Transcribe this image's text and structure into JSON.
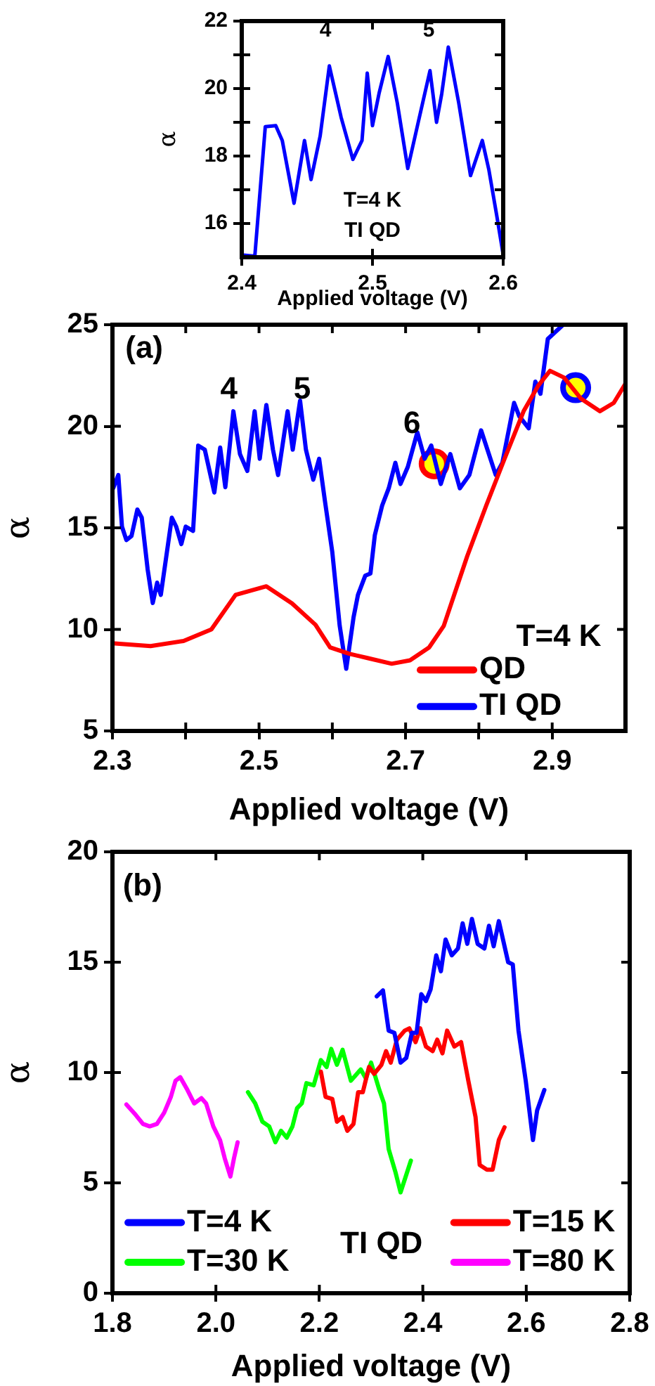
{
  "chart_data": [
    {
      "type": "line",
      "xlabel": "Applied voltage (V)",
      "ylabel": "α",
      "xlim": [
        2.4,
        2.6
      ],
      "xticks": [
        2.4,
        2.5,
        2.6
      ],
      "ylim": [
        15,
        22
      ],
      "yticks": [
        16,
        {
          "value": 17,
          "label": null
        },
        18,
        {
          "value": 19,
          "label": null
        },
        20,
        {
          "value": 21,
          "label": null
        },
        22
      ],
      "series": [
        {
          "color": "#0000ff",
          "x": [
            2.4,
            2.41,
            2.418,
            2.426,
            2.431,
            2.44,
            2.448,
            2.453,
            2.46,
            2.467,
            2.476,
            2.485,
            2.492,
            2.496,
            2.5,
            2.505,
            2.512,
            2.519,
            2.527,
            2.535,
            2.544,
            2.549,
            2.553,
            2.558,
            2.566,
            2.575,
            2.584,
            2.589,
            2.595,
            2.6
          ],
          "values": [
            15.07,
            15.03,
            18.87,
            18.9,
            18.46,
            16.6,
            18.46,
            17.3,
            18.6,
            20.67,
            19.15,
            17.9,
            18.46,
            20.46,
            18.9,
            19.85,
            20.95,
            19.57,
            17.63,
            19.0,
            20.53,
            19.0,
            19.85,
            21.23,
            19.57,
            17.42,
            18.46,
            17.6,
            16.25,
            15.07
          ]
        }
      ],
      "annotations": [
        "T=4 K",
        "TI QD",
        "4",
        "5"
      ]
    },
    {
      "type": "line",
      "xlabel": "Applied voltage (V)",
      "ylabel": "α",
      "xlim": [
        2.3,
        3.0
      ],
      "xticks": [
        2.3,
        {
          "value": 2.4,
          "label": null
        },
        2.5,
        {
          "value": 2.6,
          "label": null
        },
        2.7,
        {
          "value": 2.8,
          "label": null
        },
        2.9
      ],
      "ylim": [
        5,
        25
      ],
      "yticks": [
        5,
        10,
        15,
        20,
        25
      ],
      "legend": "bottom right",
      "series": [
        {
          "name": "QD",
          "color": "#ff0000",
          "x": [
            2.3,
            2.352,
            2.397,
            2.435,
            2.468,
            2.51,
            2.545,
            2.577,
            2.597,
            2.623,
            2.648,
            2.681,
            2.706,
            2.732,
            2.752,
            2.784,
            2.81,
            2.835,
            2.861,
            2.881,
            2.897,
            2.916,
            2.939,
            2.965,
            2.984,
            3.0
          ],
          "values": [
            9.32,
            9.18,
            9.43,
            10.0,
            11.7,
            12.12,
            11.28,
            10.23,
            9.11,
            8.8,
            8.59,
            8.31,
            8.48,
            9.11,
            10.17,
            13.6,
            16.1,
            18.4,
            20.74,
            22.0,
            22.73,
            22.4,
            21.37,
            20.74,
            21.15,
            22.1
          ]
        },
        {
          "name": "TI QD",
          "color": "#0000ff",
          "x": [
            2.301,
            2.308,
            2.313,
            2.319,
            2.326,
            2.334,
            2.34,
            2.348,
            2.355,
            2.361,
            2.366,
            2.381,
            2.387,
            2.394,
            2.4,
            2.41,
            2.417,
            2.426,
            2.439,
            2.447,
            2.454,
            2.465,
            2.474,
            2.484,
            2.494,
            2.501,
            2.51,
            2.519,
            2.526,
            2.539,
            2.546,
            2.556,
            2.564,
            2.574,
            2.582,
            2.59,
            2.6,
            2.61,
            2.619,
            2.629,
            2.635,
            2.645,
            2.652,
            2.658,
            2.668,
            2.677,
            2.686,
            2.693,
            2.703,
            2.716,
            2.726,
            2.735,
            2.748,
            2.761,
            2.774,
            2.787,
            2.803,
            2.823,
            2.832,
            2.848,
            2.855,
            2.868,
            2.877,
            2.884,
            2.894,
            2.915
          ],
          "values": [
            16.95,
            17.6,
            15.06,
            14.4,
            14.6,
            15.9,
            15.5,
            12.96,
            11.3,
            12.3,
            11.7,
            15.5,
            15.06,
            14.2,
            15.06,
            14.85,
            19.05,
            18.85,
            16.74,
            18.95,
            17.0,
            20.74,
            18.63,
            17.8,
            20.74,
            18.4,
            21.05,
            18.85,
            17.6,
            20.74,
            18.85,
            21.26,
            18.85,
            17.37,
            18.4,
            16.3,
            13.8,
            10.2,
            8.06,
            10.6,
            11.7,
            12.65,
            12.75,
            14.64,
            16.1,
            16.95,
            18.2,
            17.16,
            18.0,
            19.7,
            18.4,
            19.05,
            17.16,
            18.63,
            16.95,
            17.6,
            19.8,
            17.6,
            18.2,
            21.15,
            20.5,
            19.9,
            22.2,
            21.6,
            24.3,
            25
          ]
        },
        {
          "type": "scatter",
          "color": "#ffff00",
          "x": [
            2.739
          ],
          "values": [
            18.15
          ]
        },
        {
          "type": "scatter",
          "color": "#ffff00",
          "x": [
            2.932
          ],
          "values": [
            21.9
          ]
        }
      ],
      "annotations": [
        "(a)",
        "T=4 K",
        "4",
        "5",
        "6"
      ]
    },
    {
      "type": "line",
      "xlabel": "Applied voltage (V)",
      "ylabel": "α",
      "xlim": [
        1.8,
        2.8
      ],
      "xticks": [
        1.8,
        {
          "value": 2.0,
          "label": "2.0"
        },
        2.2,
        2.4,
        2.6,
        2.8
      ],
      "ylim": [
        0,
        20
      ],
      "yticks": [
        0,
        5,
        10,
        15,
        20
      ],
      "legend": "bottom",
      "series": [
        {
          "name": "T=4 K",
          "color": "#0000ff",
          "x": [
            2.311,
            2.323,
            2.334,
            2.345,
            2.357,
            2.368,
            2.379,
            2.388,
            2.397,
            2.406,
            2.415,
            2.426,
            2.435,
            2.444,
            2.456,
            2.468,
            2.477,
            2.486,
            2.495,
            2.506,
            2.519,
            2.528,
            2.537,
            2.547,
            2.565,
            2.574,
            2.585,
            2.599,
            2.613,
            2.621,
            2.635
          ],
          "values": [
            13.45,
            13.72,
            11.9,
            11.8,
            10.45,
            10.66,
            11.8,
            11.8,
            13.55,
            13.24,
            13.76,
            15.31,
            14.59,
            16.03,
            15.31,
            15.62,
            16.76,
            15.83,
            16.96,
            15.83,
            15.62,
            16.65,
            15.72,
            16.86,
            15.0,
            14.9,
            11.9,
            9.63,
            6.94,
            8.28,
            9.21
          ]
        },
        {
          "name": "T=15 K",
          "color": "#ff0000",
          "x": [
            2.203,
            2.212,
            2.225,
            2.234,
            2.245,
            2.254,
            2.266,
            2.275,
            2.284,
            2.296,
            2.306,
            2.32,
            2.329,
            2.338,
            2.35,
            2.365,
            2.374,
            2.386,
            2.395,
            2.406,
            2.419,
            2.428,
            2.438,
            2.447,
            2.461,
            2.474,
            2.488,
            2.502,
            2.51,
            2.524,
            2.535,
            2.547,
            2.558
          ],
          "values": [
            10.04,
            8.9,
            8.8,
            7.77,
            7.98,
            7.36,
            7.67,
            9.11,
            9.11,
            10.25,
            9.94,
            10.35,
            10.97,
            10.45,
            11.49,
            11.9,
            12.0,
            11.38,
            12.0,
            11.18,
            10.97,
            11.49,
            10.87,
            11.9,
            11.18,
            11.38,
            9.63,
            7.98,
            5.81,
            5.6,
            5.6,
            6.94,
            7.52
          ]
        },
        {
          "name": "T=30 K",
          "color": "#00ff00",
          "x": [
            2.062,
            2.076,
            2.09,
            2.103,
            2.115,
            2.126,
            2.137,
            2.148,
            2.157,
            2.166,
            2.175,
            2.189,
            2.203,
            2.214,
            2.223,
            2.234,
            2.245,
            2.261,
            2.28,
            2.29,
            2.3,
            2.316,
            2.325,
            2.334,
            2.347,
            2.357,
            2.377
          ],
          "values": [
            9.11,
            8.6,
            7.77,
            7.56,
            6.84,
            7.36,
            7.05,
            7.56,
            8.39,
            8.6,
            9.52,
            9.42,
            10.56,
            10.25,
            11.07,
            10.35,
            11.03,
            9.63,
            10.14,
            9.73,
            10.45,
            9.21,
            8.6,
            6.53,
            5.5,
            4.57,
            6.01
          ]
        },
        {
          "name": "T=80 K",
          "color": "#ff00ff",
          "x": [
            1.827,
            1.845,
            1.859,
            1.872,
            1.886,
            1.9,
            1.913,
            1.922,
            1.931,
            1.945,
            1.958,
            1.972,
            1.981,
            1.995,
            2.008,
            2.017,
            2.028,
            2.035,
            2.042
          ],
          "values": [
            8.55,
            8.08,
            7.67,
            7.56,
            7.67,
            8.18,
            8.9,
            9.63,
            9.79,
            9.21,
            8.6,
            8.84,
            8.6,
            7.56,
            6.94,
            6.12,
            5.29,
            6.12,
            6.84
          ]
        }
      ],
      "annotations": [
        "(b)",
        "TI QD"
      ]
    }
  ]
}
